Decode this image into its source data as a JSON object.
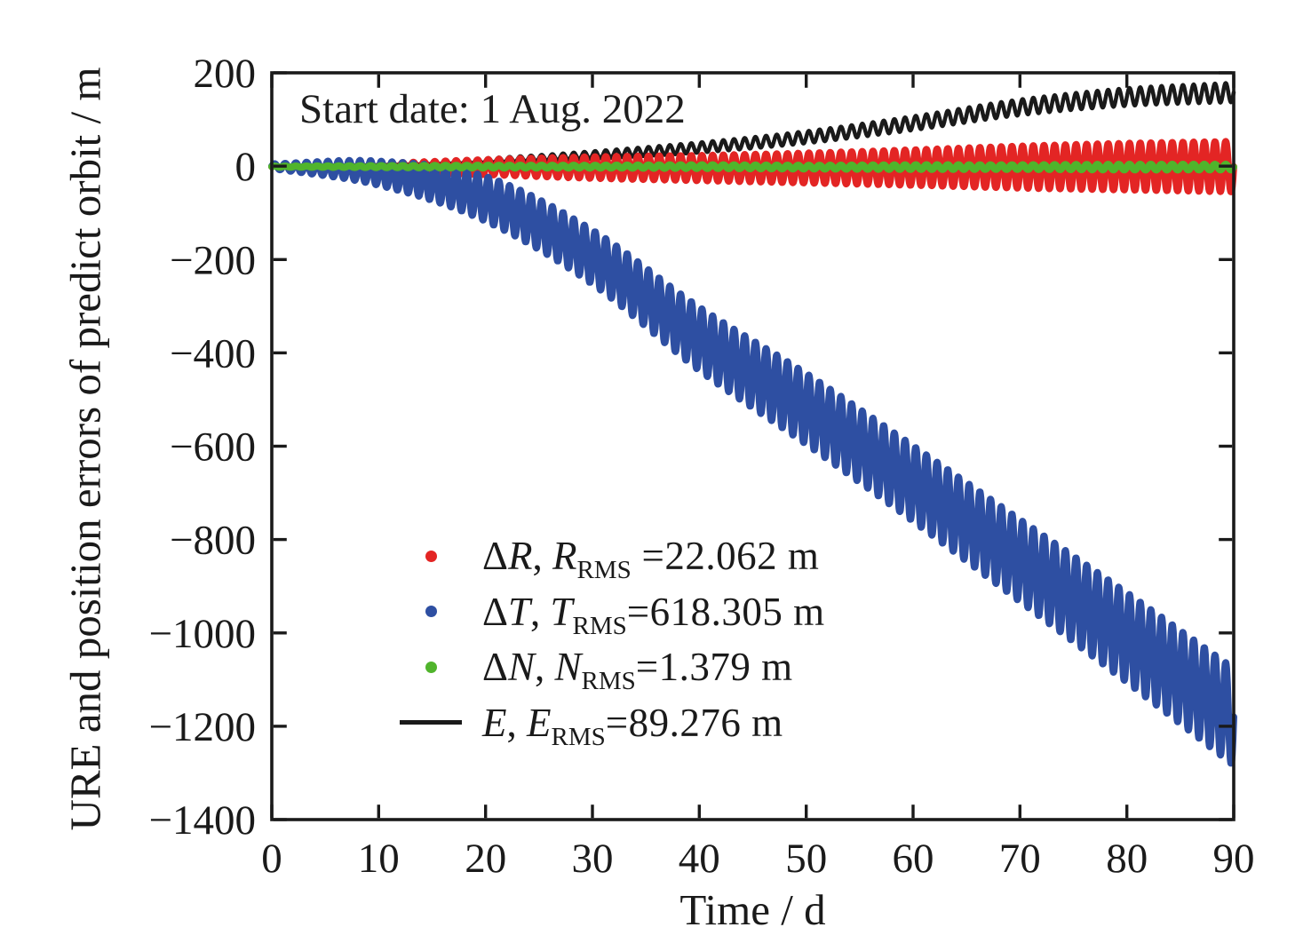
{
  "chart_data": {
    "type": "line",
    "annotation": "Start date: 1 Aug. 2022",
    "xlabel": "Time / d",
    "ylabel": "URE and position errors of predict orbit / m",
    "xlim": [
      0,
      90
    ],
    "ylim": [
      -1400,
      200
    ],
    "xticks": [
      0,
      10,
      20,
      30,
      40,
      50,
      60,
      70,
      80,
      90
    ],
    "yticks": [
      200,
      0,
      -200,
      -400,
      -600,
      -800,
      -1000,
      -1200,
      -1400
    ],
    "grid": false,
    "legend_position": "inside center-left",
    "axis_color": "#1a1a1a",
    "oscillation": {
      "period_days": 1.0,
      "knot_times": [
        0,
        10,
        20,
        30,
        40,
        50,
        60,
        70,
        80,
        90
      ]
    },
    "series": [
      {
        "name": "E",
        "label": "E, E_RMS=89.276 m",
        "rms_m": 89.276,
        "style": "line",
        "color": "#1a1a1a",
        "center": [
          2,
          5,
          12,
          24,
          40,
          62,
          92,
          126,
          148,
          158
        ],
        "amplitude": [
          1,
          3,
          5,
          8,
          11,
          13,
          15,
          17,
          19,
          21
        ]
      },
      {
        "name": "ΔR",
        "label": "ΔR, R_RMS =22.062 m",
        "rms_m": 22.062,
        "style": "scatter",
        "color": "#e32524",
        "center": [
          -1,
          -2,
          -2,
          -3,
          -4,
          -4,
          -3,
          -2,
          -1,
          -1
        ],
        "amplitude": [
          2,
          8,
          16,
          23,
          27,
          32,
          38,
          45,
          50,
          54
        ]
      },
      {
        "name": "ΔT",
        "label": "ΔT, T_RMS=618.305 m",
        "rms_m": 618.305,
        "style": "scatter",
        "color": "#2e4fa2",
        "center": [
          0,
          -15,
          -70,
          -195,
          -370,
          -520,
          -680,
          -845,
          -1010,
          -1180
        ],
        "amplitude": [
          5,
          26,
          48,
          58,
          68,
          76,
          81,
          88,
          96,
          104
        ]
      },
      {
        "name": "ΔN",
        "label": "ΔN, N_RMS=1.379 m",
        "rms_m": 1.379,
        "style": "scatter",
        "color": "#50b42c",
        "center": [
          -1,
          -1,
          -1,
          -1,
          -1,
          -2,
          -2,
          -2,
          -2,
          -2
        ],
        "amplitude": [
          1,
          2,
          3,
          3,
          4,
          4,
          5,
          5,
          6,
          6
        ]
      }
    ]
  },
  "legend": {
    "items": [
      {
        "marker": "dot",
        "color": "#e32524",
        "delta": "Δ",
        "var1": "R",
        "sep": ", ",
        "var2": "R",
        "sub": "RMS",
        "eq": " =22.062 m"
      },
      {
        "marker": "dot",
        "color": "#2e4fa2",
        "delta": "Δ",
        "var1": "T",
        "sep": ", ",
        "var2": "T",
        "sub": "RMS",
        "eq": "=618.305 m"
      },
      {
        "marker": "dot",
        "color": "#50b42c",
        "delta": "Δ",
        "var1": "N",
        "sep": ", ",
        "var2": "N",
        "sub": "RMS",
        "eq": "=1.379 m"
      },
      {
        "marker": "line",
        "color": "#1a1a1a",
        "delta": "",
        "var1": "E",
        "sep": ", ",
        "var2": "E",
        "sub": "RMS",
        "eq": "=89.276 m"
      }
    ]
  }
}
